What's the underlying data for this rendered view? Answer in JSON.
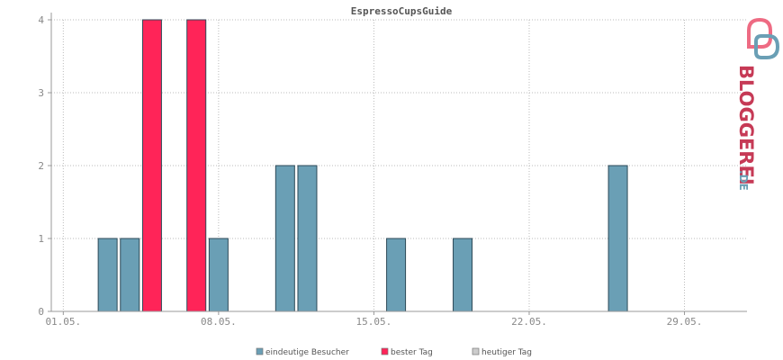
{
  "chart_data": {
    "type": "bar",
    "title": "EspressoCupsGuide",
    "xlabel": "",
    "ylabel": "",
    "ylim": [
      0,
      4
    ],
    "yticks": [
      "0",
      "1",
      "2",
      "3",
      "4"
    ],
    "xticks": [
      {
        "day": 1,
        "label": "01.05."
      },
      {
        "day": 8,
        "label": "08.05."
      },
      {
        "day": 15,
        "label": "15.05."
      },
      {
        "day": 22,
        "label": "22.05."
      },
      {
        "day": 29,
        "label": "29.05."
      }
    ],
    "x_range_days": [
      1,
      31
    ],
    "grid": true,
    "legend_position": "bottom",
    "series": [
      {
        "name": "eindeutige Besucher",
        "color": "#6a9fb5"
      },
      {
        "name": "bester Tag",
        "color": "#ff2458"
      },
      {
        "name": "heutiger Tag",
        "color": "#cccccc"
      }
    ],
    "bars": [
      {
        "day": 3,
        "value": 1,
        "series": 0
      },
      {
        "day": 4,
        "value": 1,
        "series": 0
      },
      {
        "day": 5,
        "value": 4,
        "series": 1
      },
      {
        "day": 7,
        "value": 4,
        "series": 1
      },
      {
        "day": 8,
        "value": 1,
        "series": 0
      },
      {
        "day": 11,
        "value": 2,
        "series": 0
      },
      {
        "day": 12,
        "value": 2,
        "series": 0
      },
      {
        "day": 16,
        "value": 1,
        "series": 0
      },
      {
        "day": 19,
        "value": 1,
        "series": 0
      },
      {
        "day": 26,
        "value": 2,
        "series": 0
      }
    ]
  },
  "logo": {
    "text_main": "BLOGGEREI",
    "text_suffix": ".DE",
    "color_main": "#c63a56",
    "color_suffix": "#6a9fb5"
  }
}
